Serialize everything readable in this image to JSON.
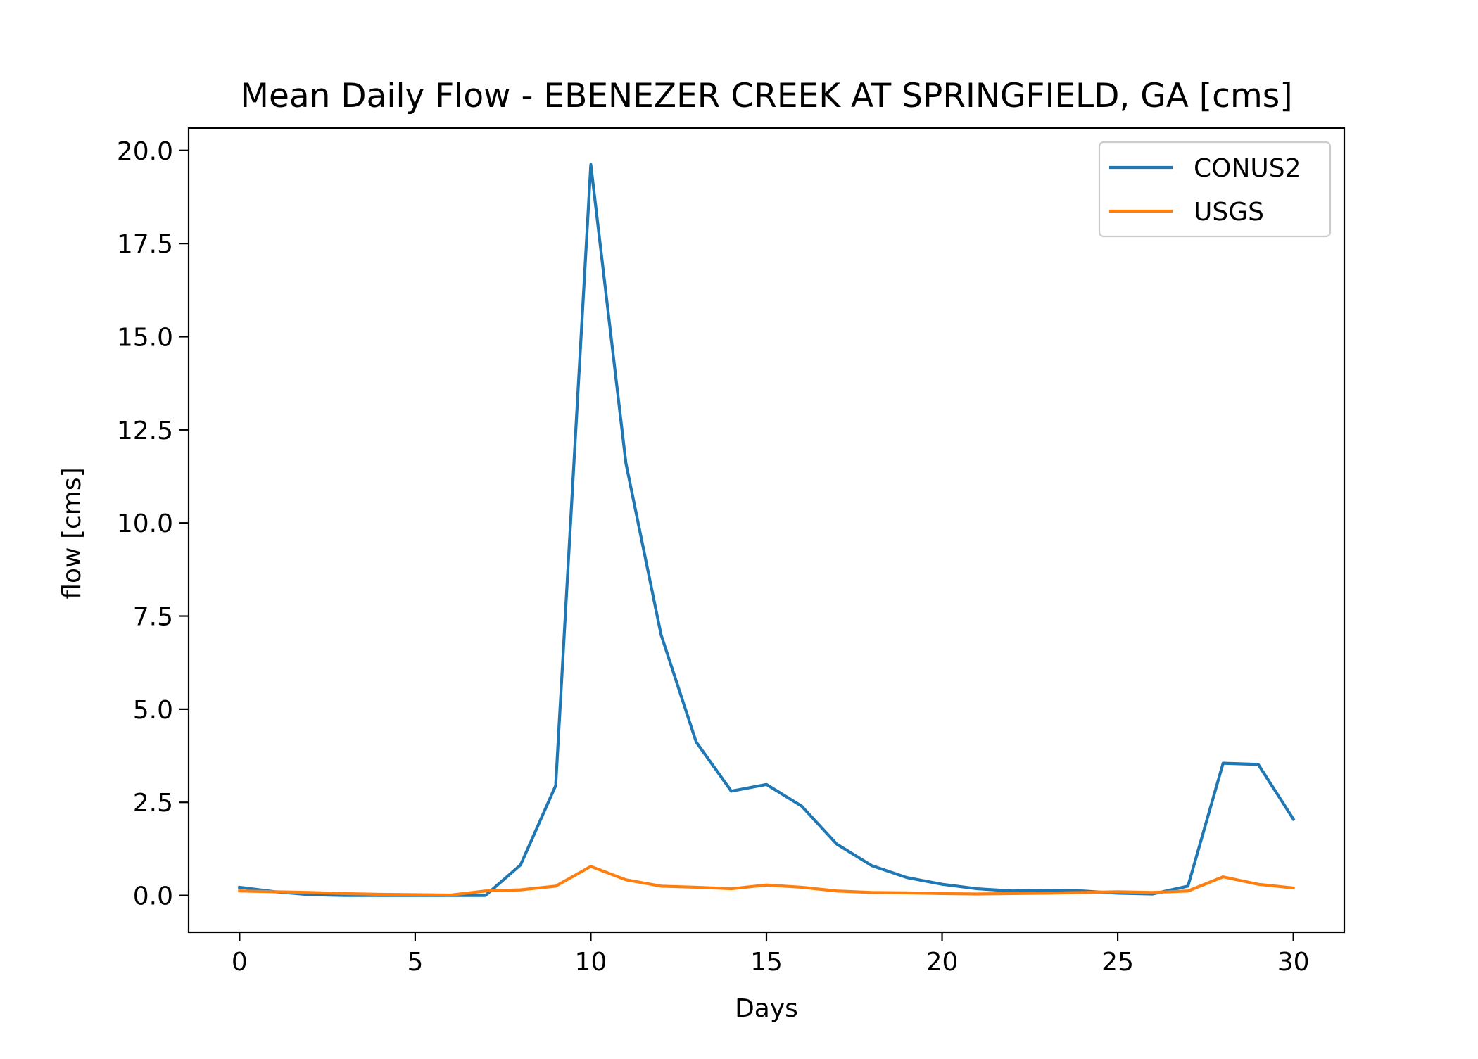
{
  "chart_data": {
    "type": "line",
    "title": "Mean Daily Flow - EBENEZER CREEK AT SPRINGFIELD, GA [cms]",
    "xlabel": "Days",
    "ylabel": "flow [cms]",
    "xlim": [
      -1.45,
      31.45
    ],
    "ylim": [
      -0.99,
      20.6
    ],
    "x_ticks": [
      0,
      5,
      10,
      15,
      20,
      25,
      30
    ],
    "y_ticks": [
      0.0,
      2.5,
      5.0,
      7.5,
      10.0,
      12.5,
      15.0,
      17.5,
      20.0
    ],
    "x_tick_labels": [
      "0",
      "5",
      "10",
      "15",
      "20",
      "25",
      "30"
    ],
    "y_tick_labels": [
      "0.0",
      "2.5",
      "5.0",
      "7.5",
      "10.0",
      "12.5",
      "15.0",
      "17.5",
      "20.0"
    ],
    "grid": false,
    "legend_position": "upper right",
    "x": [
      0,
      1,
      2,
      3,
      4,
      5,
      6,
      7,
      8,
      9,
      10,
      11,
      12,
      13,
      14,
      15,
      16,
      17,
      18,
      19,
      20,
      21,
      22,
      23,
      24,
      25,
      26,
      27,
      28,
      29,
      30
    ],
    "series": [
      {
        "name": "CONUS2",
        "color": "#1f77b4",
        "values": [
          0.22,
          0.1,
          0.02,
          0.0,
          0.0,
          0.0,
          0.0,
          0.0,
          0.82,
          2.95,
          19.62,
          11.6,
          7.0,
          4.12,
          2.8,
          2.98,
          2.4,
          1.38,
          0.8,
          0.48,
          0.3,
          0.18,
          0.12,
          0.14,
          0.12,
          0.06,
          0.04,
          0.25,
          3.55,
          3.52,
          2.05
        ]
      },
      {
        "name": "USGS",
        "color": "#ff7f0e",
        "values": [
          0.12,
          0.1,
          0.08,
          0.05,
          0.03,
          0.02,
          0.01,
          0.12,
          0.15,
          0.25,
          0.78,
          0.42,
          0.25,
          0.22,
          0.18,
          0.28,
          0.22,
          0.12,
          0.08,
          0.07,
          0.05,
          0.04,
          0.05,
          0.06,
          0.08,
          0.1,
          0.08,
          0.12,
          0.5,
          0.3,
          0.2
        ]
      }
    ]
  }
}
